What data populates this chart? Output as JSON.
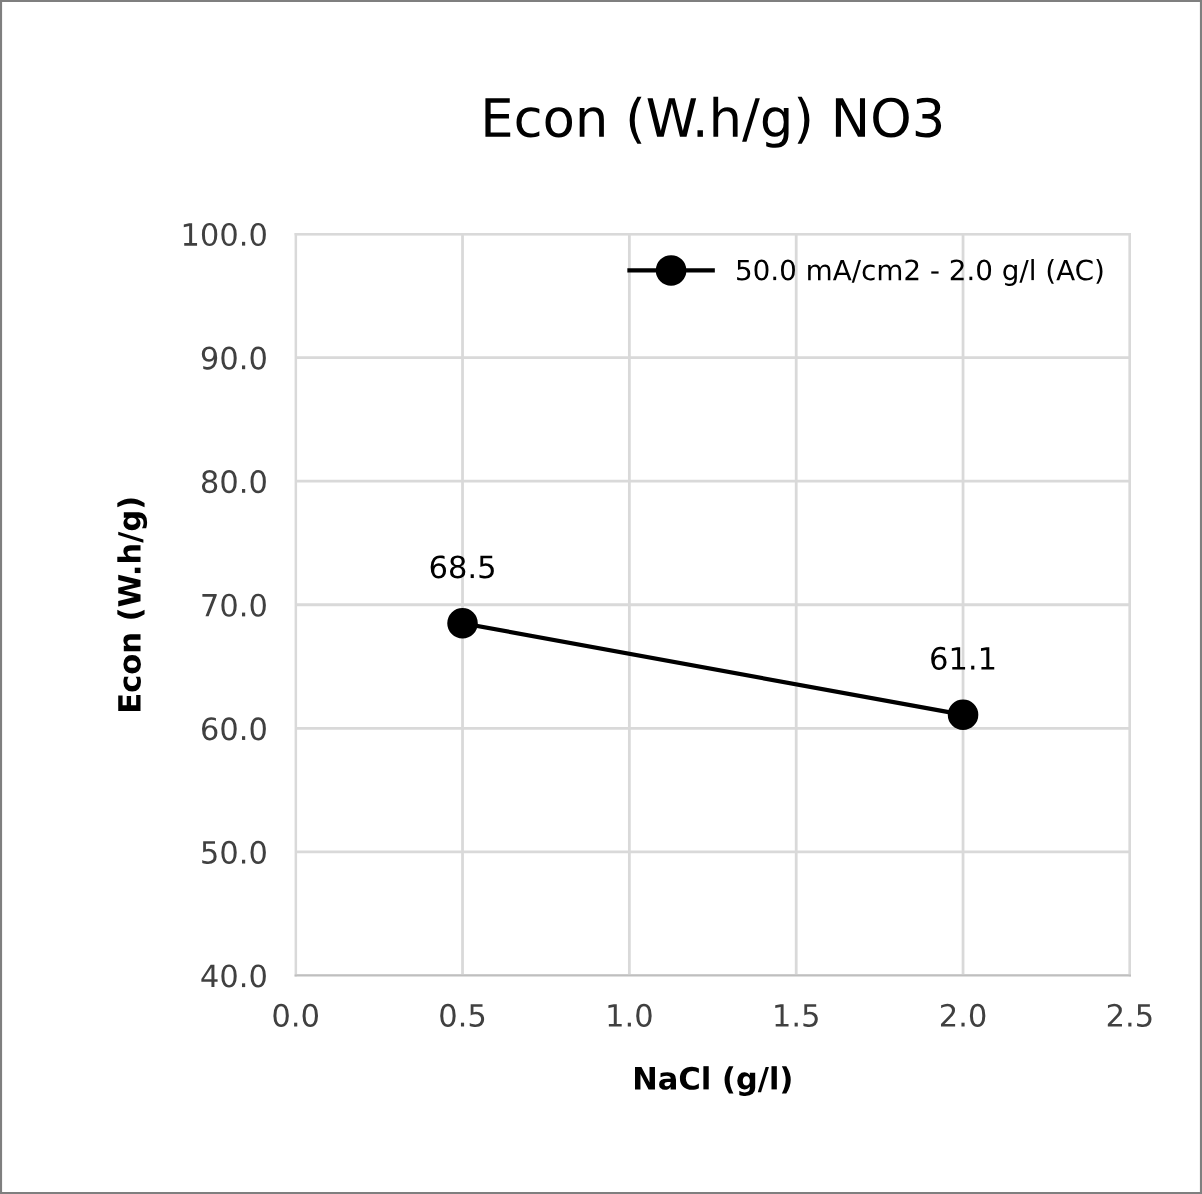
{
  "chart_data": {
    "type": "line",
    "title": "Econ (W.h/g) NO3",
    "xlabel": "NaCl (g/l)",
    "ylabel": "Econ (W.h/g)",
    "x": [
      0.5,
      2.0
    ],
    "series": [
      {
        "name": "50.0 mA/cm2 - 2.0 g/l (AC)",
        "color": "#000000",
        "values": [
          68.5,
          61.1
        ]
      }
    ],
    "xlim": [
      0,
      2.5
    ],
    "xticks": [
      {
        "value": 0,
        "label": "0.0"
      },
      {
        "value": 0.5,
        "label": "0.5"
      },
      {
        "value": 1,
        "label": "1.0"
      },
      {
        "value": 1.5,
        "label": "1.5"
      },
      {
        "value": 2,
        "label": "2.0"
      },
      {
        "value": 2.5,
        "label": "2.5"
      }
    ],
    "ylim": [
      40,
      100
    ],
    "yticks": [
      {
        "value": 40,
        "label": "40.0"
      },
      {
        "value": 50,
        "label": "50.0"
      },
      {
        "value": 60,
        "label": "60.0"
      },
      {
        "value": 70,
        "label": "70.0"
      },
      {
        "value": 80,
        "label": "80.0"
      },
      {
        "value": 90,
        "label": "90.0"
      },
      {
        "value": 100,
        "label": "100.0"
      }
    ],
    "grid": true,
    "legend": "top right",
    "marker": "circle",
    "line_style": "solid",
    "data_labels": true
  }
}
